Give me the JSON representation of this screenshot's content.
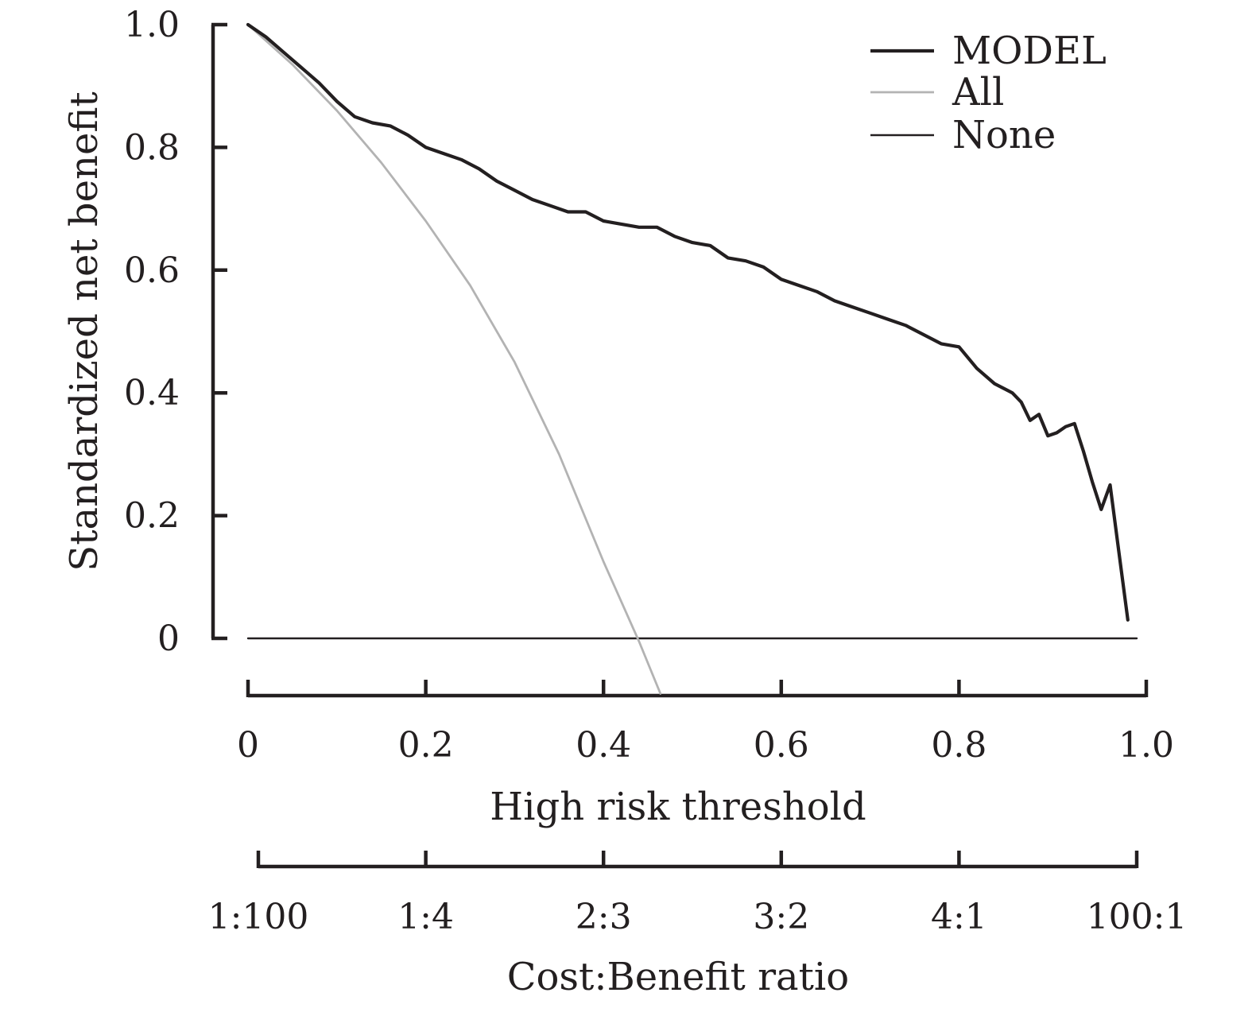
{
  "chart_data": {
    "type": "line",
    "title": "",
    "ylabel": "Standardized net benefit",
    "xlabel": "High risk threshold",
    "x2label": "Cost:Benefit ratio",
    "xlim": [
      0,
      1.0
    ],
    "ylim": [
      0,
      1.0
    ],
    "x_ticks": [
      0,
      0.2,
      0.4,
      0.6,
      0.8,
      1.0
    ],
    "x_tick_labels": [
      "0",
      "0.2",
      "0.4",
      "0.6",
      "0.8",
      "1.0"
    ],
    "y_ticks": [
      0,
      0.2,
      0.4,
      0.6,
      0.8,
      1.0
    ],
    "y_tick_labels": [
      "0",
      "0.2",
      "0.4",
      "0.6",
      "0.8",
      "1.0"
    ],
    "x2_ticks": [
      0.01,
      0.2,
      0.4,
      0.6,
      0.8,
      0.99
    ],
    "x2_tick_labels": [
      "1:100",
      "1:4",
      "2:3",
      "3:2",
      "4:1",
      "100:1"
    ],
    "grid": false,
    "legend_position": "top-right",
    "series": [
      {
        "name": "MODEL",
        "color": "#231f20",
        "x": [
          0,
          0.02,
          0.04,
          0.06,
          0.08,
          0.1,
          0.12,
          0.14,
          0.16,
          0.18,
          0.2,
          0.22,
          0.24,
          0.26,
          0.28,
          0.3,
          0.32,
          0.34,
          0.36,
          0.38,
          0.4,
          0.42,
          0.44,
          0.46,
          0.48,
          0.5,
          0.52,
          0.54,
          0.56,
          0.58,
          0.6,
          0.62,
          0.64,
          0.66,
          0.68,
          0.7,
          0.72,
          0.74,
          0.76,
          0.78,
          0.8,
          0.82,
          0.84,
          0.86,
          0.87,
          0.88,
          0.89,
          0.9,
          0.91,
          0.92,
          0.93,
          0.94,
          0.95,
          0.96,
          0.97,
          0.98,
          0.99
        ],
        "y": [
          1.0,
          0.98,
          0.955,
          0.93,
          0.905,
          0.875,
          0.85,
          0.84,
          0.835,
          0.82,
          0.8,
          0.79,
          0.78,
          0.765,
          0.745,
          0.73,
          0.715,
          0.705,
          0.695,
          0.695,
          0.68,
          0.675,
          0.67,
          0.67,
          0.655,
          0.645,
          0.64,
          0.62,
          0.615,
          0.605,
          0.585,
          0.575,
          0.565,
          0.55,
          0.54,
          0.53,
          0.52,
          0.51,
          0.495,
          0.48,
          0.475,
          0.44,
          0.415,
          0.4,
          0.385,
          0.355,
          0.365,
          0.33,
          0.335,
          0.345,
          0.35,
          0.305,
          0.255,
          0.21,
          0.25,
          0.14,
          0.03
        ]
      },
      {
        "name": "All",
        "color": "#b3b3b3",
        "x": [
          0,
          0.05,
          0.1,
          0.15,
          0.2,
          0.25,
          0.3,
          0.35,
          0.4,
          0.44,
          0.464
        ],
        "y": [
          1.0,
          0.935,
          0.86,
          0.775,
          0.68,
          0.575,
          0.45,
          0.3,
          0.125,
          -0.005,
          -0.09
        ]
      },
      {
        "name": "None",
        "color": "#231f20",
        "x": [
          0,
          1.0
        ],
        "y": [
          0,
          0
        ]
      }
    ]
  }
}
